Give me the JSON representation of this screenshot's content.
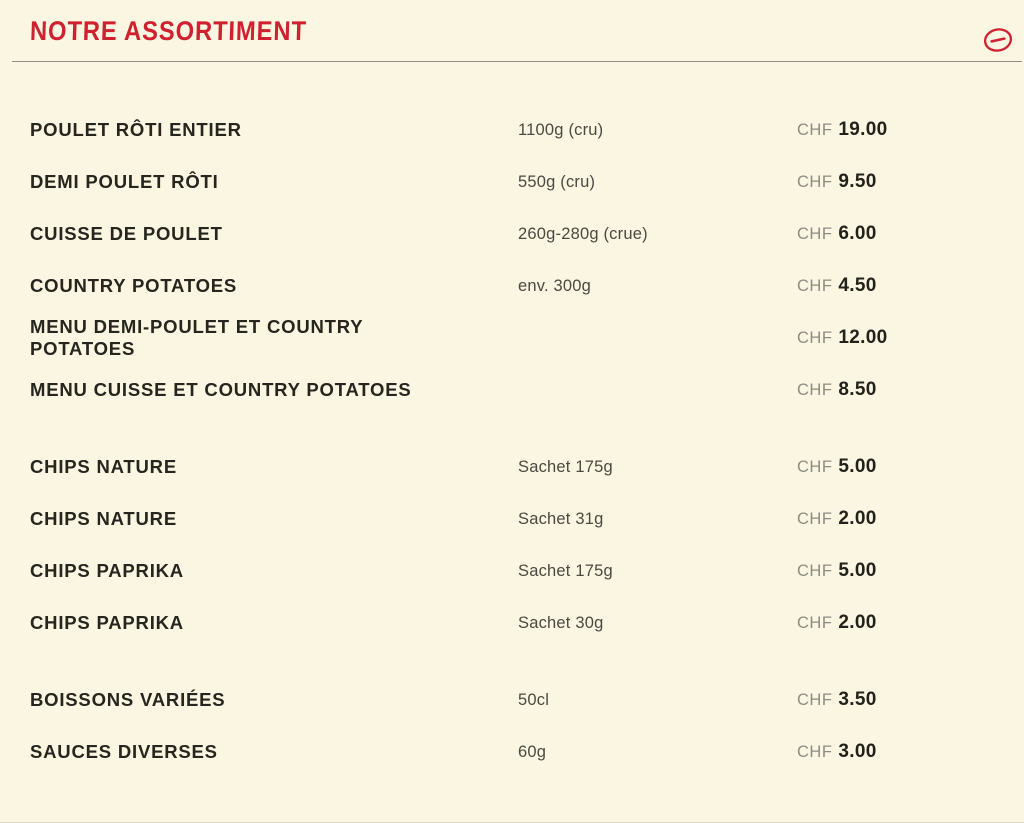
{
  "header": {
    "title": "NOTRE ASSORTIMENT"
  },
  "currency": "CHF",
  "menu": {
    "groups": [
      {
        "items": [
          {
            "name": "POULET RÔTI ENTIER",
            "portion": "1100g (cru)",
            "price": "19.00"
          },
          {
            "name": "DEMI POULET RÔTI",
            "portion": "550g (cru)",
            "price": "9.50"
          },
          {
            "name": "CUISSE DE POULET",
            "portion": "260g-280g (crue)",
            "price": "6.00"
          },
          {
            "name": "COUNTRY POTATOES",
            "portion": "env. 300g",
            "price": "4.50"
          },
          {
            "name": "MENU DEMI-POULET ET COUNTRY POTATOES",
            "portion": "",
            "price": "12.00"
          },
          {
            "name": "MENU CUISSE ET COUNTRY POTATOES",
            "portion": "",
            "price": "8.50"
          }
        ]
      },
      {
        "items": [
          {
            "name": "CHIPS NATURE",
            "portion": "Sachet 175g",
            "price": "5.00"
          },
          {
            "name": "CHIPS NATURE",
            "portion": "Sachet 31g",
            "price": "2.00"
          },
          {
            "name": "CHIPS PAPRIKA",
            "portion": "Sachet 175g",
            "price": "5.00"
          },
          {
            "name": "CHIPS PAPRIKA",
            "portion": "Sachet 30g",
            "price": "2.00"
          }
        ]
      },
      {
        "items": [
          {
            "name": "BOISSONS VARIÉES",
            "portion": "50cl",
            "price": "3.50"
          },
          {
            "name": "SAUCES DIVERSES",
            "portion": "60g",
            "price": "3.00"
          }
        ]
      }
    ]
  },
  "icons": {
    "collapse": "minus-circle-icon"
  },
  "colors": {
    "background": "#fbf6e1",
    "accent_red": "#cf2130",
    "name_text": "#26251e",
    "portion_text": "#4b4a41",
    "currency_text": "#8d8c81",
    "price_text": "#22211a",
    "divider": "#918f88",
    "bottom_line": "#dcd7c3"
  }
}
